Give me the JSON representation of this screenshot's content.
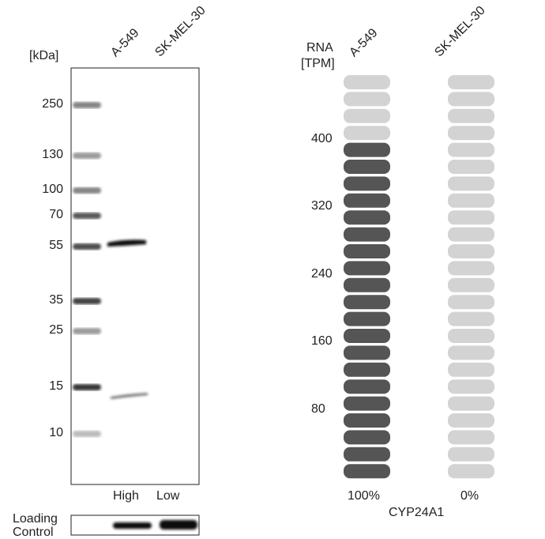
{
  "western_blot": {
    "unit_label": "[kDa]",
    "lanes": [
      "A-549",
      "SK-MEL-30"
    ],
    "markers": [
      "250",
      "130",
      "100",
      "70",
      "55",
      "35",
      "25",
      "15",
      "10"
    ],
    "lane_levels": [
      "High",
      "Low"
    ],
    "loading_control_label": [
      "Loading",
      "Control"
    ]
  },
  "chart_data": {
    "type": "bar",
    "title": "CYP24A1",
    "ylabel": "RNA [TPM]",
    "ylabel_lines": [
      "RNA",
      "[TPM]"
    ],
    "categories": [
      "A-549",
      "SK-MEL-30"
    ],
    "values_percent": [
      100,
      0
    ],
    "value_labels": [
      "100%",
      "0%"
    ],
    "yticks": [
      "400",
      "320",
      "240",
      "160",
      "80"
    ],
    "ylim": [
      0,
      480
    ],
    "segments_total": 24,
    "segments_filled": [
      20,
      0
    ],
    "colors": {
      "filled": "#555555",
      "empty": "#d3d3d3"
    }
  }
}
